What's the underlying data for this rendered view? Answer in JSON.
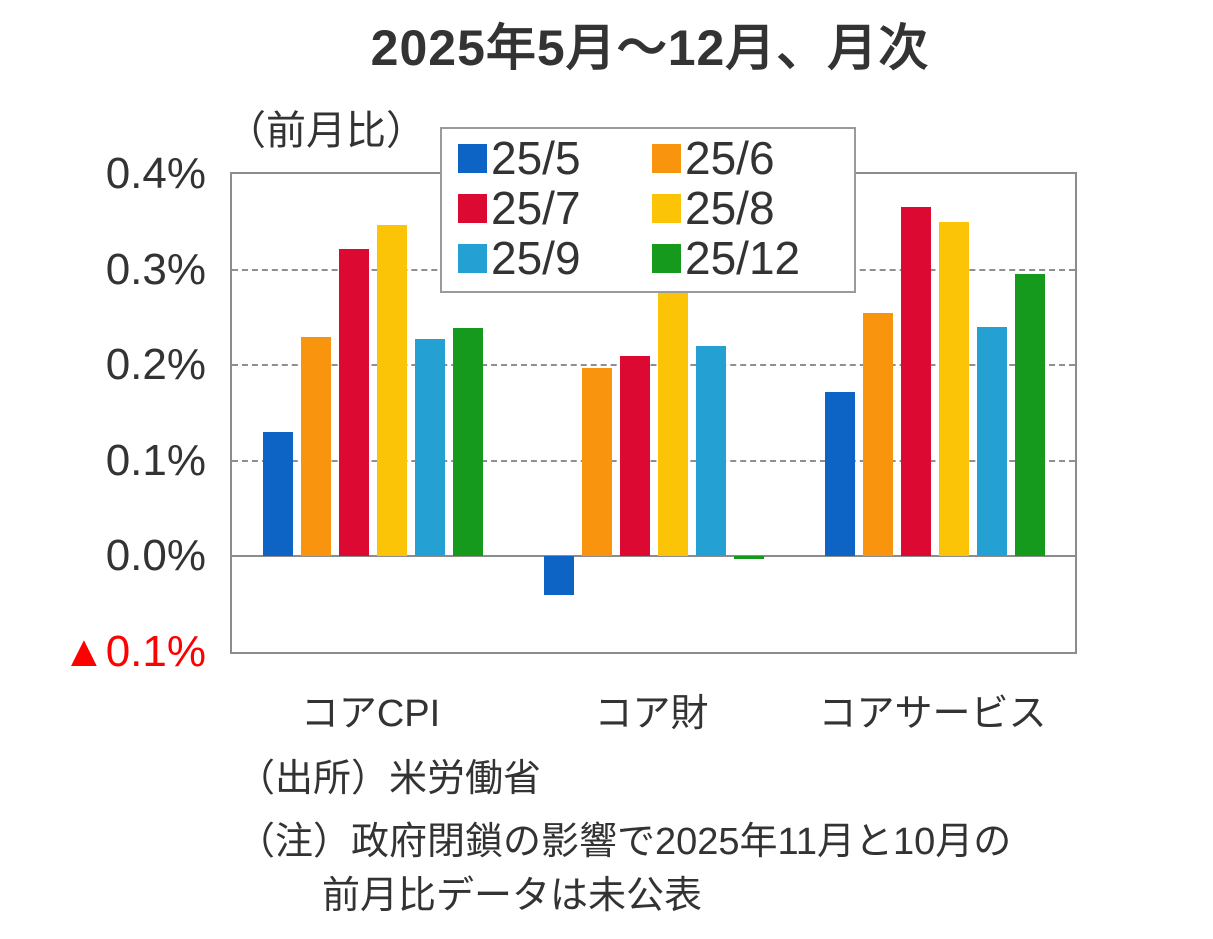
{
  "title": "2025年5月～12月、月次",
  "axis_unit_label": "（前月比）",
  "colors": {
    "text": "#333333",
    "negative_tick": "#ff0000",
    "gridline": "#8f8f8f",
    "plot_border": "#8c8c8c"
  },
  "y_axis": {
    "ticks": [
      {
        "value": 0.4,
        "label": "0.4%"
      },
      {
        "value": 0.3,
        "label": "0.3%"
      },
      {
        "value": 0.2,
        "label": "0.2%"
      },
      {
        "value": 0.1,
        "label": "0.1%"
      },
      {
        "value": 0.0,
        "label": "0.0%"
      },
      {
        "value": -0.1,
        "label": "▲0.1%",
        "negative": true
      }
    ]
  },
  "chart_data": {
    "type": "bar",
    "title": "2025年5月～12月、月次",
    "ylabel": "（前月比）",
    "ylim": [
      -0.1,
      0.4
    ],
    "gridlines": [
      0.1,
      0.2,
      0.3
    ],
    "grid": true,
    "legend_position": "top-center",
    "categories": [
      "コアCPI",
      "コア財",
      "コアサービス"
    ],
    "series": [
      {
        "name": "25/5",
        "color": "#0d64c4",
        "values": [
          0.13,
          -0.04,
          0.172
        ]
      },
      {
        "name": "25/6",
        "color": "#f8940d",
        "values": [
          0.229,
          0.197,
          0.255
        ]
      },
      {
        "name": "25/7",
        "color": "#dc0a33",
        "values": [
          0.322,
          0.21,
          0.365
        ]
      },
      {
        "name": "25/8",
        "color": "#fcc406",
        "values": [
          0.347,
          0.277,
          0.35
        ]
      },
      {
        "name": "25/9",
        "color": "#25a0d2",
        "values": [
          0.227,
          0.22,
          0.24
        ]
      },
      {
        "name": "25/12",
        "color": "#169a1e",
        "values": [
          0.239,
          -0.003,
          0.295
        ]
      }
    ]
  },
  "footer": {
    "source": "（出所）米労働省",
    "note_line1": "（注）政府閉鎖の影響で2025年11月と10月の",
    "note_line2": "前月比データは未公表"
  }
}
